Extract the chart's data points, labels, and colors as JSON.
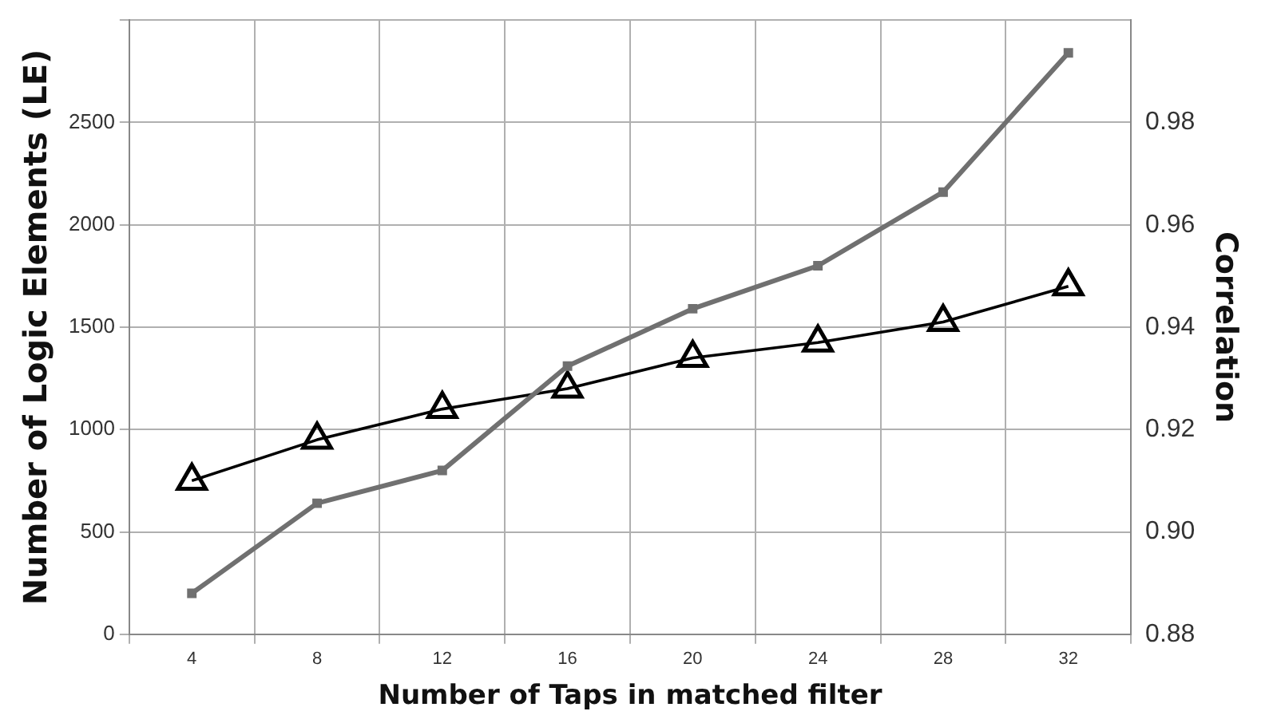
{
  "chart_data": {
    "type": "line",
    "xlabel": "Number of Taps in matched filter",
    "ylabel": "Number of Logic Elements (LE)",
    "y2label": "Correlation",
    "categories": [
      "4",
      "8",
      "12",
      "16",
      "20",
      "24",
      "28",
      "32"
    ],
    "series": [
      {
        "color": "#707070",
        "marker": "square",
        "values": [
          200,
          640,
          800,
          1310,
          1590,
          1800,
          2160,
          2840
        ]
      },
      {
        "color": "#000000",
        "marker": "triangle",
        "axis": "y2",
        "values": [
          0.91,
          0.918,
          0.924,
          0.928,
          0.934,
          0.937,
          0.941,
          0.948
        ]
      }
    ],
    "ylim": [
      0,
      3000
    ],
    "yticks": [
      0,
      500,
      1000,
      1500,
      2000,
      2500,
      {
        "value": 3000,
        "label": null
      }
    ],
    "y2lim": [
      0.88,
      1.0
    ],
    "y2ticks": [
      {
        "value": 0.88,
        "label": "0.88"
      },
      {
        "value": 0.9,
        "label": "0.90"
      },
      {
        "value": 0.92,
        "label": "0.92"
      },
      {
        "value": 0.94,
        "label": "0.94"
      },
      {
        "value": 0.96,
        "label": "0.96"
      },
      {
        "value": 0.98,
        "label": "0.98"
      },
      {
        "value": 1.0,
        "label": null
      }
    ],
    "grid": true,
    "legend": false
  }
}
